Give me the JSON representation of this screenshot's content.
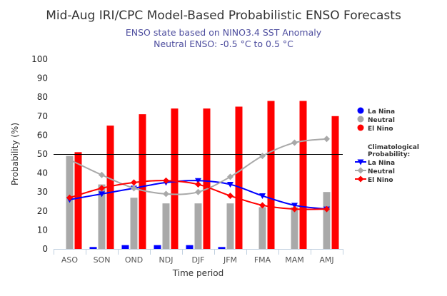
{
  "chart_data": {
    "type": "bar",
    "title": "Mid-Aug IRI/CPC Model-Based Probabilistic ENSO Forecasts",
    "subtitle_lines": [
      "ENSO state based on NINO3.4 SST Anomaly",
      "Neutral ENSO: -0.5 °C to 0.5 °C"
    ],
    "xlabel": "Time period",
    "ylabel": "Probability (%)",
    "categories": [
      "ASO",
      "SON",
      "OND",
      "NDJ",
      "DJF",
      "JFM",
      "FMA",
      "MAM",
      "AMJ"
    ],
    "ylim": [
      0,
      100
    ],
    "yticks": [
      0,
      10,
      20,
      30,
      40,
      50,
      60,
      70,
      80,
      90,
      100
    ],
    "reference_line": 50,
    "grid": false,
    "legend_position": "right",
    "series": [
      {
        "name": "La Nina",
        "color": "#0000ff",
        "values": [
          0,
          1,
          2,
          2,
          2,
          1,
          0,
          0,
          0
        ]
      },
      {
        "name": "Neutral",
        "color": "#a9a9a9",
        "values": [
          49,
          34,
          27,
          24,
          24,
          24,
          22,
          22,
          30
        ]
      },
      {
        "name": "El Nino",
        "color": "#ff0000",
        "values": [
          51,
          65,
          71,
          74,
          74,
          75,
          78,
          78,
          70
        ]
      }
    ],
    "climatology_title": [
      "Climatological",
      "Probability:"
    ],
    "climatology": [
      {
        "name": "La Nina",
        "color": "#0000ff",
        "marker": "triangle-down",
        "values": [
          26,
          29,
          32,
          35,
          36,
          34,
          28,
          23,
          21
        ]
      },
      {
        "name": "Neutral",
        "color": "#a9a9a9",
        "marker": "diamond",
        "values": [
          47,
          39,
          32,
          29,
          30,
          38,
          49,
          56,
          58
        ]
      },
      {
        "name": "El Nino",
        "color": "#ff0000",
        "marker": "diamond",
        "values": [
          27,
          32,
          35,
          36,
          34,
          28,
          23,
          21,
          21
        ]
      }
    ]
  }
}
